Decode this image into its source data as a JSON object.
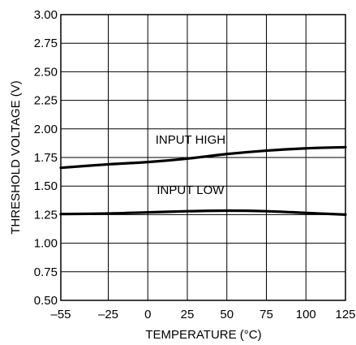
{
  "chart_data": {
    "type": "line",
    "title": "",
    "xlabel": "TEMPERATURE (°C)",
    "ylabel": "THRESHOLD VOLTAGE (V)",
    "xlim": [
      -55,
      125
    ],
    "ylim": [
      0.5,
      3.0
    ],
    "grid": true,
    "x_ticks": [
      -55,
      -25,
      0,
      25,
      50,
      75,
      100,
      125
    ],
    "x_tick_labels": [
      "–55",
      "–25",
      "0",
      "25",
      "50",
      "75",
      "100",
      "125"
    ],
    "y_ticks": [
      0.5,
      0.75,
      1.0,
      1.25,
      1.5,
      1.75,
      2.0,
      2.25,
      2.5,
      2.75,
      3.0
    ],
    "y_tick_labels": [
      "0.50",
      "0.75",
      "1.00",
      "1.25",
      "1.50",
      "1.75",
      "2.00",
      "2.25",
      "2.50",
      "2.75",
      "3.00"
    ],
    "series": [
      {
        "name": "INPUT HIGH",
        "label_at": [
          27,
          1.87
        ],
        "x": [
          -55,
          -25,
          0,
          25,
          50,
          75,
          100,
          125
        ],
        "y": [
          1.66,
          1.69,
          1.71,
          1.74,
          1.78,
          1.81,
          1.83,
          1.84
        ]
      },
      {
        "name": "INPUT LOW",
        "label_at": [
          27,
          1.43
        ],
        "x": [
          -55,
          -25,
          0,
          25,
          50,
          75,
          100,
          125
        ],
        "y": [
          1.255,
          1.26,
          1.27,
          1.28,
          1.285,
          1.28,
          1.265,
          1.25
        ]
      }
    ]
  }
}
